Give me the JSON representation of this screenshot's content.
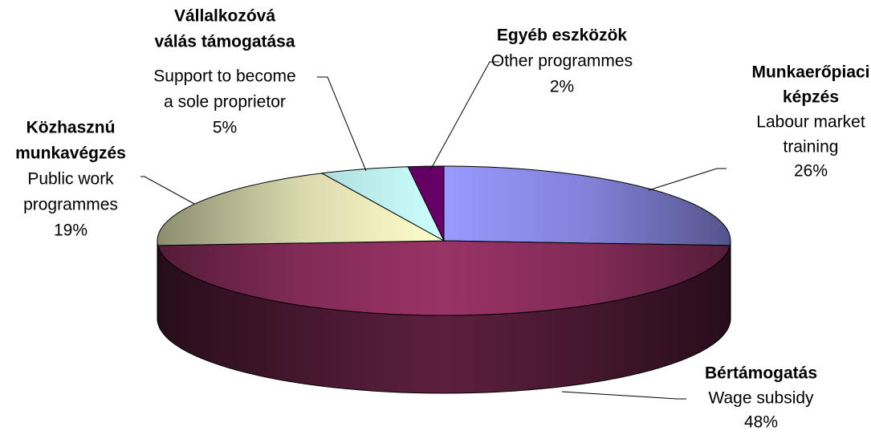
{
  "chart_data": {
    "type": "pie3d",
    "labels": [
      {
        "hu": [
          "Munkaerőpiaci",
          "képzés"
        ],
        "en": [
          "Labour market",
          "training"
        ]
      },
      {
        "hu": [
          "Bértámogatás"
        ],
        "en": [
          "Wage subsidy"
        ]
      },
      {
        "hu": [
          "Közhasznú",
          "munkavégzés"
        ],
        "en": [
          "Public work",
          "programmes"
        ]
      },
      {
        "hu": [
          "Vállalkozóvá",
          "válás támogatása"
        ],
        "en": [
          "Support to become",
          "a sole proprietor"
        ]
      },
      {
        "hu": [
          "Egyéb eszközök"
        ],
        "en": [
          "Other programmes"
        ]
      }
    ],
    "values": [
      26,
      48,
      19,
      5,
      2
    ],
    "value_labels": [
      "26%",
      "48%",
      "19%",
      "5%",
      "2%"
    ],
    "colors": [
      "#9999ff",
      "#993366",
      "#ffffcc",
      "#ccffff",
      "#660066"
    ]
  }
}
